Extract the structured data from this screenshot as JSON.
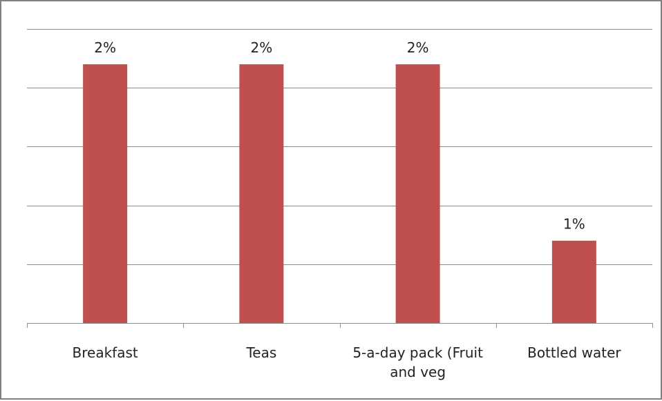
{
  "chart_data": {
    "type": "bar",
    "categories": [
      [
        "Breakfast"
      ],
      [
        "Teas"
      ],
      [
        "5-a-day pack (Fruit",
        "and veg"
      ],
      [
        "Bottled water"
      ]
    ],
    "values": [
      2.2,
      2.2,
      2.2,
      0.7
    ],
    "data_labels": [
      "2%",
      "2%",
      "2%",
      "1%"
    ],
    "ylim": [
      0,
      2.5
    ],
    "grid": true,
    "bar_color": "#c0504d",
    "title": "",
    "xlabel": "",
    "ylabel": ""
  }
}
